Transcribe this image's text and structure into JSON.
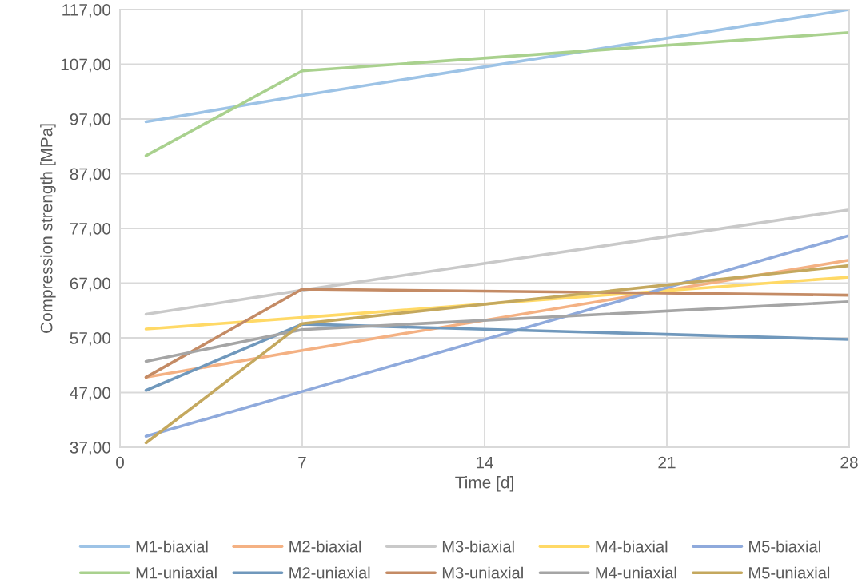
{
  "chart_data": {
    "type": "line",
    "xlabel": "Time [d]",
    "ylabel": "Compression strength [MPa]",
    "x": [
      1,
      7,
      28
    ],
    "series": [
      {
        "name": "M1-biaxial",
        "color": "#9dc3e6",
        "values": [
          96.5,
          101.3,
          117.0
        ]
      },
      {
        "name": "M2-biaxial",
        "color": "#f4b183",
        "values": [
          49.8,
          54.7,
          71.2
        ]
      },
      {
        "name": "M3-biaxial",
        "color": "#c9c9c9",
        "values": [
          61.3,
          65.7,
          80.4
        ]
      },
      {
        "name": "M4-biaxial",
        "color": "#ffd966",
        "values": [
          58.6,
          60.7,
          68.1
        ]
      },
      {
        "name": "M5-biaxial",
        "color": "#8faadc",
        "values": [
          39.0,
          47.2,
          75.7
        ]
      },
      {
        "name": "M1-uniaxial",
        "color": "#a9d18e",
        "values": [
          90.3,
          105.8,
          112.8
        ]
      },
      {
        "name": "M2-uniaxial",
        "color": "#7098bc",
        "values": [
          47.4,
          59.5,
          56.7
        ]
      },
      {
        "name": "M3-uniaxial",
        "color": "#c48b65",
        "values": [
          49.8,
          65.9,
          64.8
        ]
      },
      {
        "name": "M4-uniaxial",
        "color": "#a5a5a5",
        "values": [
          52.7,
          58.5,
          63.6
        ]
      },
      {
        "name": "M5-uniaxial",
        "color": "#c4a85e",
        "values": [
          37.8,
          59.6,
          70.2
        ]
      }
    ],
    "xlim": [
      0,
      28
    ],
    "xticks": [
      0,
      7,
      14,
      21,
      28
    ],
    "ylim": [
      37,
      117
    ],
    "yticks": [
      {
        "value": 37,
        "label": "37,00"
      },
      {
        "value": 47,
        "label": "47,00"
      },
      {
        "value": 57,
        "label": "57,00"
      },
      {
        "value": 67,
        "label": "67,00"
      },
      {
        "value": 77,
        "label": "77,00"
      },
      {
        "value": 87,
        "label": "87,00"
      },
      {
        "value": 97,
        "label": "97,00"
      },
      {
        "value": 107,
        "label": "107,00"
      },
      {
        "value": 117,
        "label": "117,00"
      }
    ],
    "grid": true,
    "legend": "bottom",
    "marker": "none",
    "line_style": "solid"
  }
}
